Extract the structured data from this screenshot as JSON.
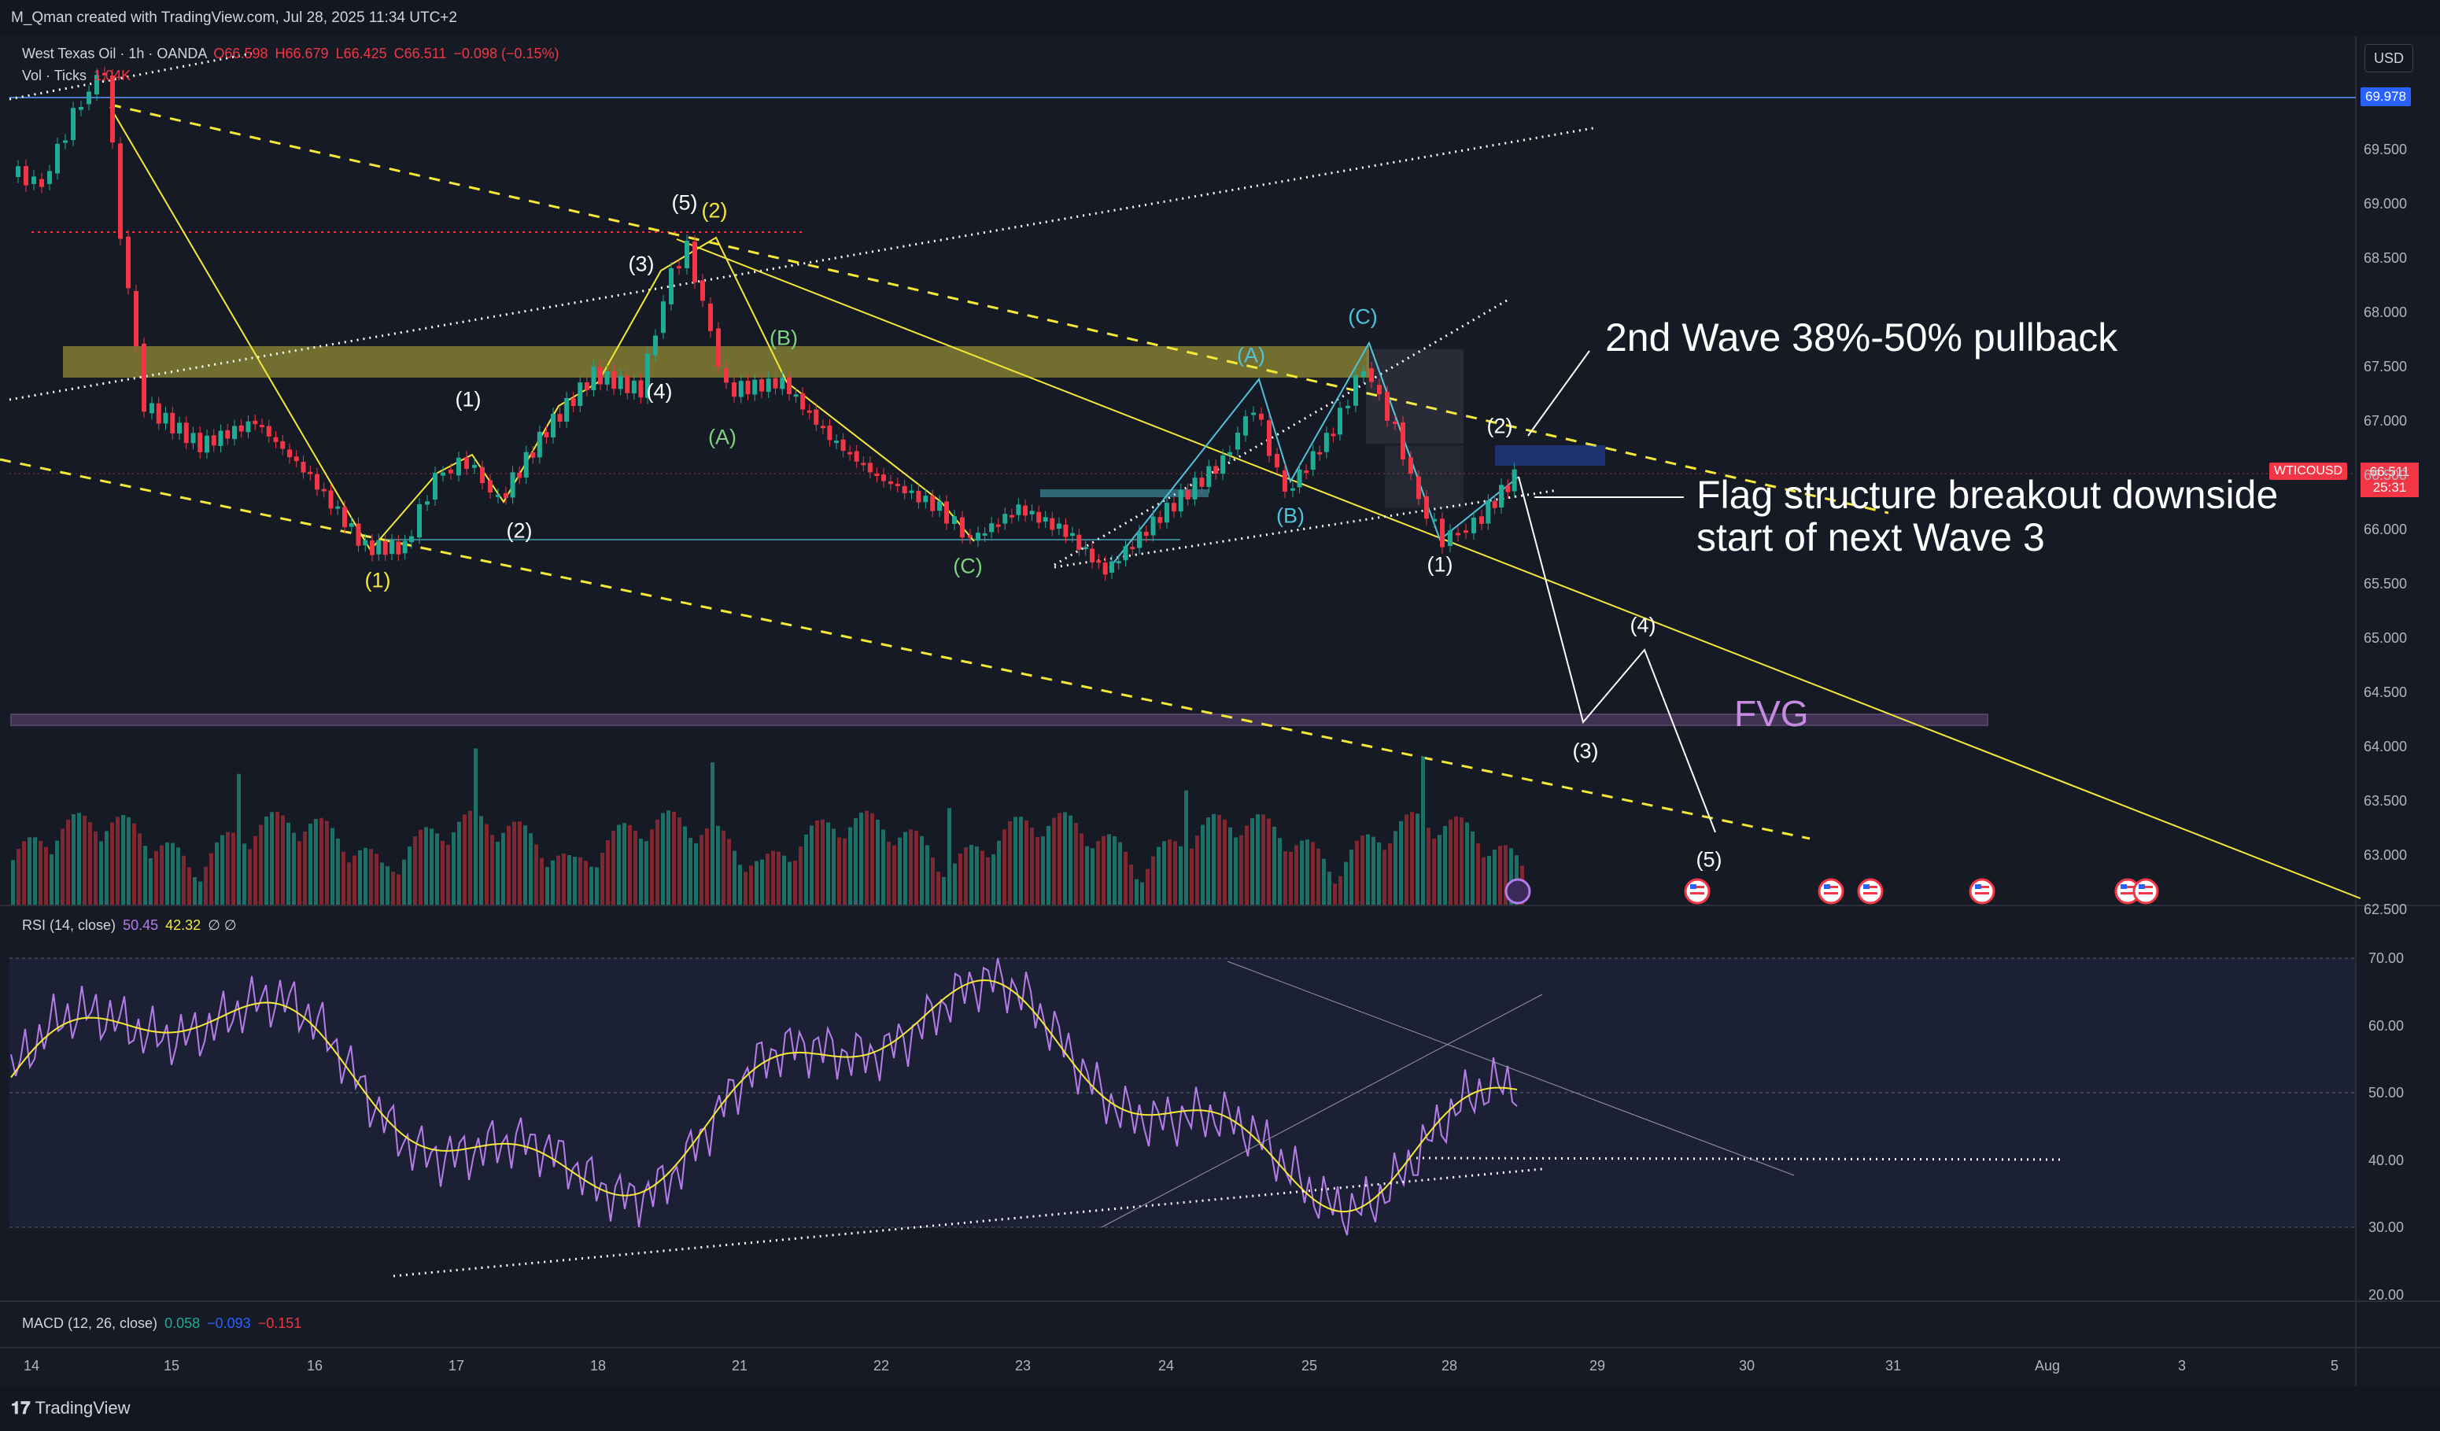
{
  "header": {
    "credit": "M_Qman created with TradingView.com, Jul 28, 2025 11:34 UTC+2"
  },
  "legend": {
    "title": "West Texas Oil · 1h · OANDA",
    "open": "O66.598",
    "high": "H66.679",
    "low": "L66.425",
    "close": "C66.511",
    "change": "−0.098 (−0.15%)",
    "volume_label": "Vol · Ticks",
    "volume_value": "1.04K"
  },
  "currency_button": "USD",
  "price_tags": {
    "top_line": "69.978",
    "symbol": "WTICOUSD",
    "last_price": "66.511",
    "countdown": "25:31"
  },
  "price_axis": [
    "69.500",
    "69.000",
    "68.500",
    "68.000",
    "67.500",
    "67.000",
    "66.500",
    "66.000",
    "65.500",
    "65.000",
    "64.500",
    "64.000",
    "63.500",
    "63.000",
    "62.500"
  ],
  "rsi": {
    "label": "RSI (14, close)",
    "value1": "50.45",
    "value2": "42.32",
    "extra": "∅ ∅",
    "axis": [
      "70.00",
      "60.00",
      "50.00",
      "40.00",
      "30.00",
      "20.00"
    ]
  },
  "macd": {
    "label": "MACD (12, 26, close)",
    "value1": "0.058",
    "value2": "−0.093",
    "value3": "−0.151"
  },
  "time_axis": [
    "14",
    "15",
    "16",
    "17",
    "18",
    "21",
    "22",
    "23",
    "24",
    "25",
    "28",
    "29",
    "30",
    "31",
    "Aug",
    "3",
    "5"
  ],
  "annotations": {
    "wave2": "2nd Wave 38%-50% pullback",
    "flag_line1": "Flag structure breakout downside",
    "flag_line2": "start of next Wave 3",
    "fvg": "FVG"
  },
  "wave_labels": [
    {
      "text": "(1)",
      "color": "#f5e936"
    },
    {
      "text": "(5)",
      "color": "#ffffff"
    },
    {
      "text": "(2)",
      "color": "#f5e936"
    },
    {
      "text": "(1)",
      "color": "#ffffff"
    },
    {
      "text": "(2)",
      "color": "#ffffff"
    },
    {
      "text": "(3)",
      "color": "#ffffff"
    },
    {
      "text": "(4)",
      "color": "#ffffff"
    },
    {
      "text": "(A)",
      "color": "#7ed37e"
    },
    {
      "text": "(B)",
      "color": "#7ed37e"
    },
    {
      "text": "(C)",
      "color": "#7ed37e"
    },
    {
      "text": "(A)",
      "color": "#4fc3d9"
    },
    {
      "text": "(B)",
      "color": "#4fc3d9"
    },
    {
      "text": "(C)",
      "color": "#4fc3d9"
    },
    {
      "text": "(1)",
      "color": "#ffffff"
    },
    {
      "text": "(2)",
      "color": "#ffffff"
    },
    {
      "text": "(3)",
      "color": "#ffffff"
    },
    {
      "text": "(4)",
      "color": "#ffffff"
    },
    {
      "text": "(5)",
      "color": "#ffffff"
    }
  ],
  "footer": {
    "logo": "TradingView"
  },
  "colors": {
    "background": "#161a25",
    "up": "#22ab94",
    "down": "#f23645",
    "yellow": "#f5e936",
    "rsi": "#b47dea",
    "fvg": "#c58be0"
  },
  "icons": [
    "lightning-icon",
    "us-flag-icon"
  ]
}
